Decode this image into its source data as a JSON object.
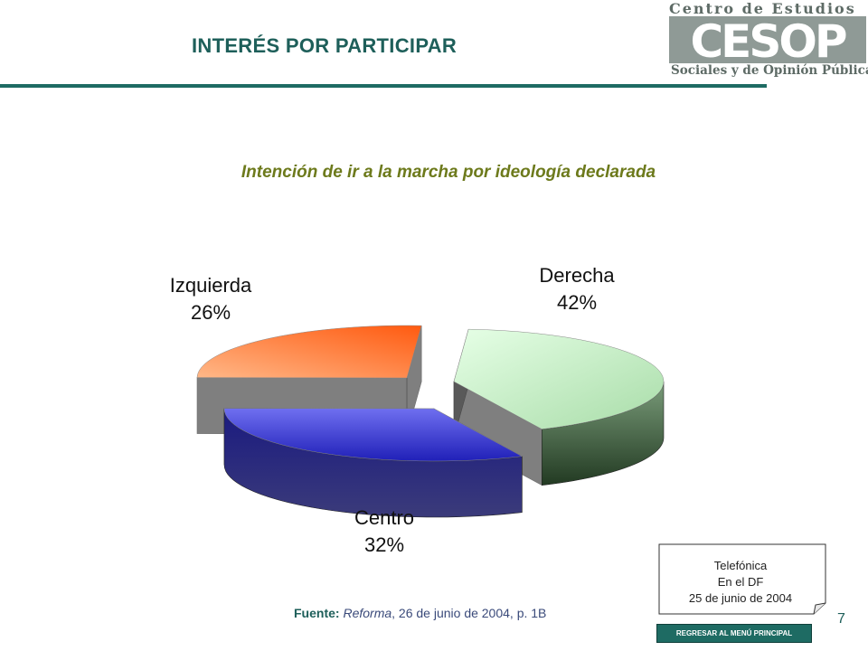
{
  "header": {
    "title": "INTERÉS POR PARTICIPAR",
    "logo": {
      "top_text": "Centro de Estudios",
      "mark_text": "CESOP",
      "bottom_text": "Sociales y de Opinión Pública"
    }
  },
  "chart_data": {
    "type": "pie",
    "title": "Intención de ir a la marcha por ideología declarada",
    "categories": [
      "Derecha",
      "Centro",
      "Izquierda"
    ],
    "values": [
      42,
      32,
      26
    ],
    "value_labels": [
      "42%",
      "32%",
      "26%"
    ],
    "colors": [
      "#b5eeb5",
      "#3a3ad6",
      "#ff7a3a"
    ],
    "legend": "none"
  },
  "source": {
    "label": "Fuente:",
    "publication": "Reforma",
    "rest": ", 26 de junio de 2004, p. 1B"
  },
  "note": {
    "lines": [
      "Telefónica",
      "En el DF",
      "25 de junio de 2004"
    ]
  },
  "page_number": "7",
  "menu_button": "REGRESAR AL MENÚ PRINCIPAL"
}
